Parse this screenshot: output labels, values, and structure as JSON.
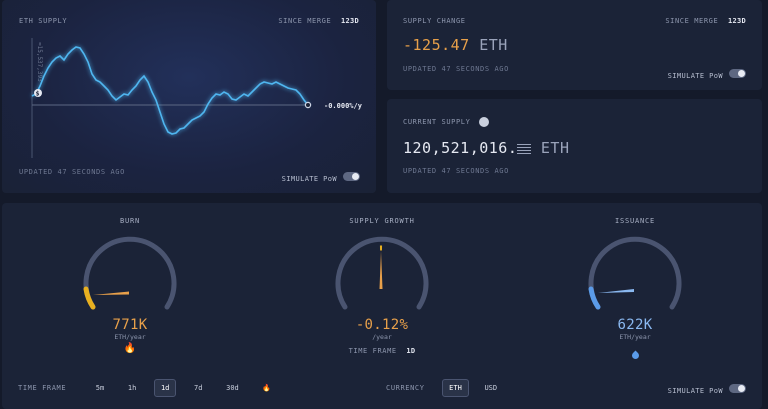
{
  "eth_supply": {
    "title": "ETH SUPPLY",
    "since_label": "SINCE MERGE",
    "since_value": "123d",
    "y_label": "≈15,537,393",
    "rate": "-0.000%/y",
    "updated": "UPDATED 47 SECONDS AGO",
    "simulate": "SIMULATE PoW",
    "marker": "$"
  },
  "supply_change": {
    "title": "SUPPLY CHANGE",
    "since_label": "SINCE MERGE",
    "since_value": "123d",
    "value": "-125.47",
    "unit": "ETH",
    "updated": "UPDATED 47 SECONDS AGO",
    "simulate": "SIMULATE PoW"
  },
  "current_supply": {
    "title": "CURRENT SUPPLY",
    "value": "120,521,016.",
    "unit": "ETH",
    "updated": "UPDATED 47 SECONDS AGO"
  },
  "gauges": [
    {
      "title": "BURN",
      "value": "771K",
      "sub": "ETH/year",
      "icon": "fire-icon",
      "color": "#e8a04a"
    },
    {
      "title": "SUPPLY GROWTH",
      "value": "-0.12%",
      "sub": "/year",
      "color": "#e8a04a"
    },
    {
      "title": "ISSUANCE",
      "value": "622K",
      "sub": "ETH/year",
      "icon": "droplet-icon",
      "color": "#8ab8f0"
    }
  ],
  "supply_growth_tf_label": "TIME FRAME",
  "supply_growth_tf_value": "1d",
  "controls": {
    "time_frame_label": "TIME FRAME",
    "time_frames": [
      "5m",
      "1h",
      "1d",
      "7d",
      "30d"
    ],
    "active_time_frame": "1d",
    "currency_label": "CURRENCY",
    "currencies": [
      "ETH",
      "USD"
    ],
    "active_currency": "ETH",
    "simulate": "SIMULATE PoW"
  },
  "colors": {
    "accent_orange": "#e8a04a",
    "chart_line": "#4fb6f0",
    "issuance_blue": "#5b9be8",
    "burn_yellow": "#e8b020"
  }
}
